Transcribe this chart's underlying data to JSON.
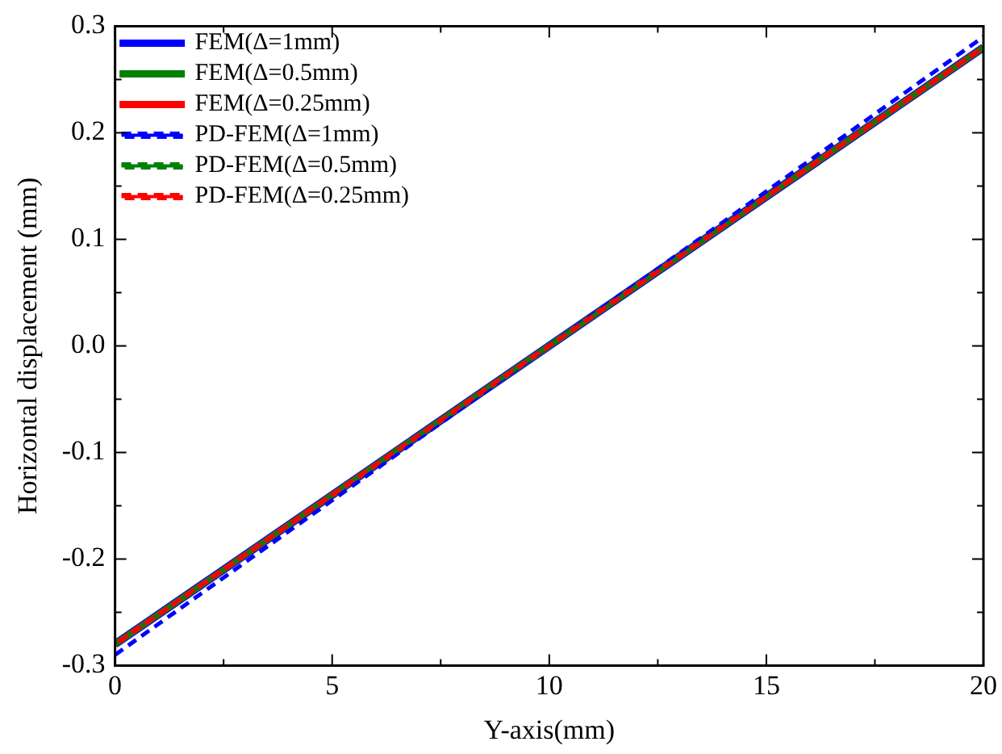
{
  "chart_data": {
    "type": "line",
    "xlabel": "Y-axis(mm)",
    "ylabel": "Horizontal displacement (mm)",
    "x": [
      0,
      10,
      20
    ],
    "series": [
      {
        "name": "FEM(Δ=1mm)",
        "color": "#0000ff",
        "values": [
          -0.28,
          0,
          0.28
        ],
        "line_style": "solid"
      },
      {
        "name": "FEM(Δ=0.5mm)",
        "color": "#008000",
        "values": [
          -0.28,
          0,
          0.28
        ],
        "line_style": "solid"
      },
      {
        "name": "FEM(Δ=0.25mm)",
        "color": "#ff0000",
        "values": [
          -0.28,
          0,
          0.28
        ],
        "line_style": "solid"
      },
      {
        "name": "PD-FEM(Δ=1mm)",
        "color": "#0000ff",
        "values": [
          -0.29,
          0,
          0.29
        ],
        "line_style": "dashed"
      },
      {
        "name": "PD-FEM(Δ=0.5mm)",
        "color": "#008000",
        "values": [
          -0.28,
          0,
          0.28
        ],
        "line_style": "dashed"
      },
      {
        "name": "PD-FEM(Δ=0.25mm)",
        "color": "#ff0000",
        "values": [
          -0.28,
          0,
          0.28
        ],
        "line_style": "dashed"
      }
    ],
    "xlim": [
      0,
      20
    ],
    "xticks": [
      0,
      {
        "value": 2.5,
        "label": null
      },
      5,
      {
        "value": 7.5,
        "label": null
      },
      10,
      {
        "value": 12.5,
        "label": null
      },
      15,
      {
        "value": 17.5,
        "label": null
      },
      20
    ],
    "ylim": [
      -0.3,
      0.3
    ],
    "yticks": [
      {
        "value": -0.3,
        "label": "-0.3"
      },
      {
        "value": -0.25,
        "label": null
      },
      {
        "value": -0.2,
        "label": "-0.2"
      },
      {
        "value": -0.15,
        "label": null
      },
      {
        "value": -0.1,
        "label": "-0.1"
      },
      {
        "value": -0.05,
        "label": null
      },
      {
        "value": 0,
        "label": "0.0"
      },
      {
        "value": 0.05,
        "label": null
      },
      {
        "value": 0.1,
        "label": "0.1"
      },
      {
        "value": 0.15,
        "label": null
      },
      {
        "value": 0.2,
        "label": "0.2"
      },
      {
        "value": 0.25,
        "label": null
      },
      {
        "value": 0.3,
        "label": "0.3"
      }
    ],
    "legend": "top left",
    "marker": "none",
    "grid": false
  }
}
